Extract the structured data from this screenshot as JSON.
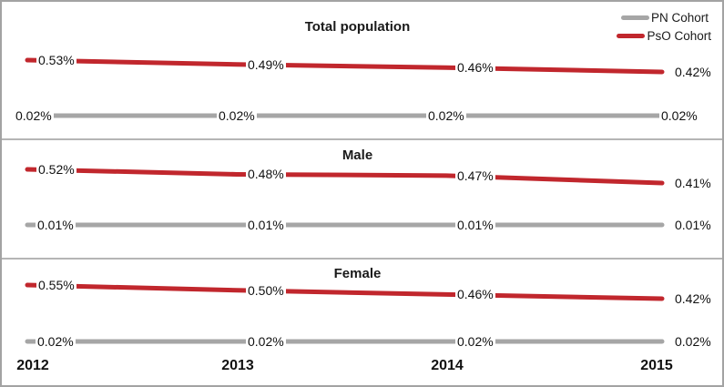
{
  "legend": {
    "items": [
      {
        "label": "PN Cohort",
        "color": "#A6A6A6"
      },
      {
        "label": "PsO Cohort",
        "color": "#C1272D"
      }
    ]
  },
  "x_axis": {
    "labels": [
      "2012",
      "2013",
      "2014",
      "2015"
    ]
  },
  "chart_data": {
    "type": "line",
    "x": [
      "2012",
      "2013",
      "2014",
      "2015"
    ],
    "grid": false,
    "legend_position": "top-right",
    "unit": "%",
    "panels": [
      {
        "title": "Total population",
        "series": [
          {
            "name": "PsO Cohort",
            "color": "#C1272D",
            "values": [
              0.53,
              0.49,
              0.46,
              0.42
            ],
            "labels": [
              "0.53%",
              "0.49%",
              "0.46%",
              "0.42%"
            ]
          },
          {
            "name": "PN Cohort",
            "color": "#A6A6A6",
            "values": [
              0.02,
              0.02,
              0.02,
              0.02
            ],
            "labels": [
              "0.02%",
              "0.02%",
              "0.02%",
              "0.02%"
            ]
          }
        ]
      },
      {
        "title": "Male",
        "series": [
          {
            "name": "PsO Cohort",
            "color": "#C1272D",
            "values": [
              0.52,
              0.48,
              0.47,
              0.41
            ],
            "labels": [
              "0.52%",
              "0.48%",
              "0.47%",
              "0.41%"
            ]
          },
          {
            "name": "PN Cohort",
            "color": "#A6A6A6",
            "values": [
              0.01,
              0.01,
              0.01,
              0.01
            ],
            "labels": [
              "0.01%",
              "0.01%",
              "0.01%",
              "0.01%"
            ]
          }
        ]
      },
      {
        "title": "Female",
        "series": [
          {
            "name": "PsO Cohort",
            "color": "#C1272D",
            "values": [
              0.55,
              0.5,
              0.46,
              0.42
            ],
            "labels": [
              "0.55%",
              "0.50%",
              "0.46%",
              "0.42%"
            ]
          },
          {
            "name": "PN Cohort",
            "color": "#A6A6A6",
            "values": [
              0.02,
              0.02,
              0.02,
              0.02
            ],
            "labels": [
              "0.02%",
              "0.02%",
              "0.02%",
              "0.02%"
            ]
          }
        ]
      }
    ]
  }
}
